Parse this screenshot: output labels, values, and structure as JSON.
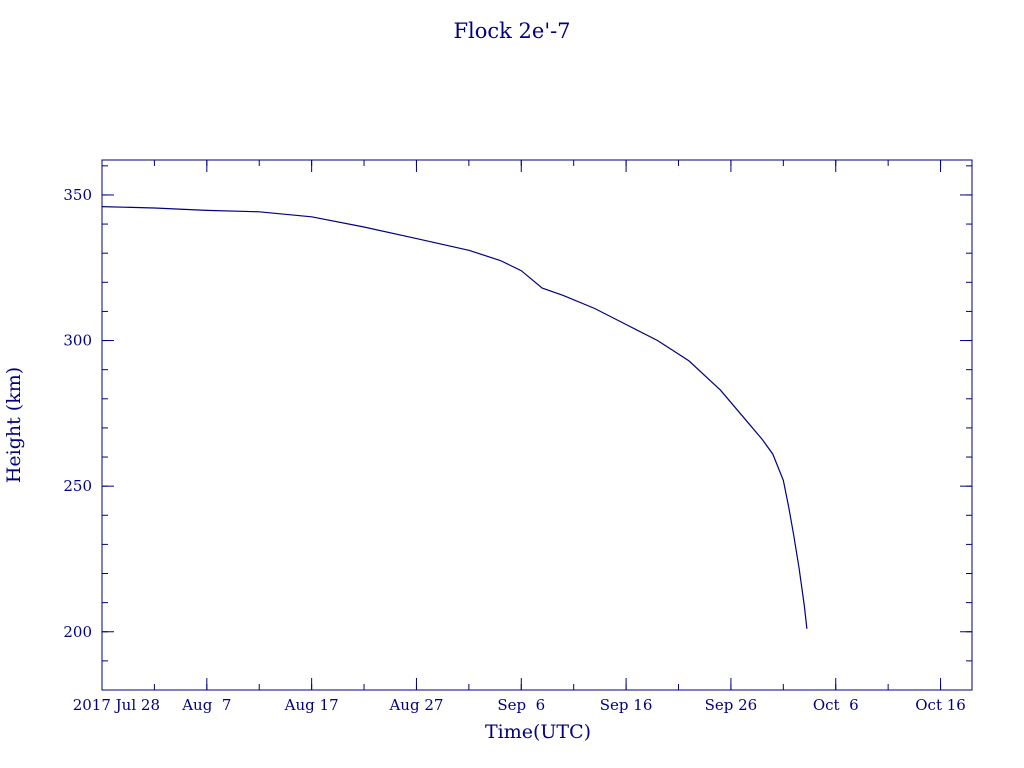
{
  "chart_data": {
    "type": "line",
    "title": "Flock 2e'-7",
    "xlabel": "Time(UTC)",
    "ylabel": "Height (km)",
    "x_type": "date",
    "xlim": [
      "2017-07-28",
      "2017-10-19"
    ],
    "ylim": [
      180,
      362
    ],
    "x_ticks": [
      {
        "date": "2017-07-28",
        "label": "2017 Jul 28"
      },
      {
        "date": "2017-08-07",
        "label": "Aug  7"
      },
      {
        "date": "2017-08-17",
        "label": "Aug 17"
      },
      {
        "date": "2017-08-27",
        "label": "Aug 27"
      },
      {
        "date": "2017-09-06",
        "label": "Sep  6"
      },
      {
        "date": "2017-09-16",
        "label": "Sep 16"
      },
      {
        "date": "2017-09-26",
        "label": "Sep 26"
      },
      {
        "date": "2017-10-06",
        "label": "Oct  6"
      },
      {
        "date": "2017-10-16",
        "label": "Oct 16"
      }
    ],
    "y_ticks": [
      200,
      250,
      300,
      350
    ],
    "y_minor_step": 10,
    "x_minor_step_days": 5,
    "grid": false,
    "color": "#000080",
    "series": [
      {
        "x": [
          "2017-07-28",
          "2017-08-02",
          "2017-08-07",
          "2017-08-12",
          "2017-08-17",
          "2017-08-22",
          "2017-08-27",
          "2017-09-01",
          "2017-09-04",
          "2017-09-06",
          "2017-09-08",
          "2017-09-10",
          "2017-09-13",
          "2017-09-16",
          "2017-09-19",
          "2017-09-22",
          "2017-09-25",
          "2017-09-27",
          "2017-09-29",
          "2017-09-30",
          "2017-10-01",
          "2017-10-01T12:00",
          "2017-10-02",
          "2017-10-02T12:00",
          "2017-10-03",
          "2017-10-03T06:00"
        ],
        "y": [
          346,
          345.5,
          344.7,
          344.2,
          342.5,
          339,
          335,
          331,
          327.5,
          324,
          318,
          315.5,
          311,
          305.5,
          300,
          293,
          283,
          274.5,
          266,
          261,
          252,
          243,
          233,
          222,
          209,
          201
        ]
      }
    ]
  }
}
